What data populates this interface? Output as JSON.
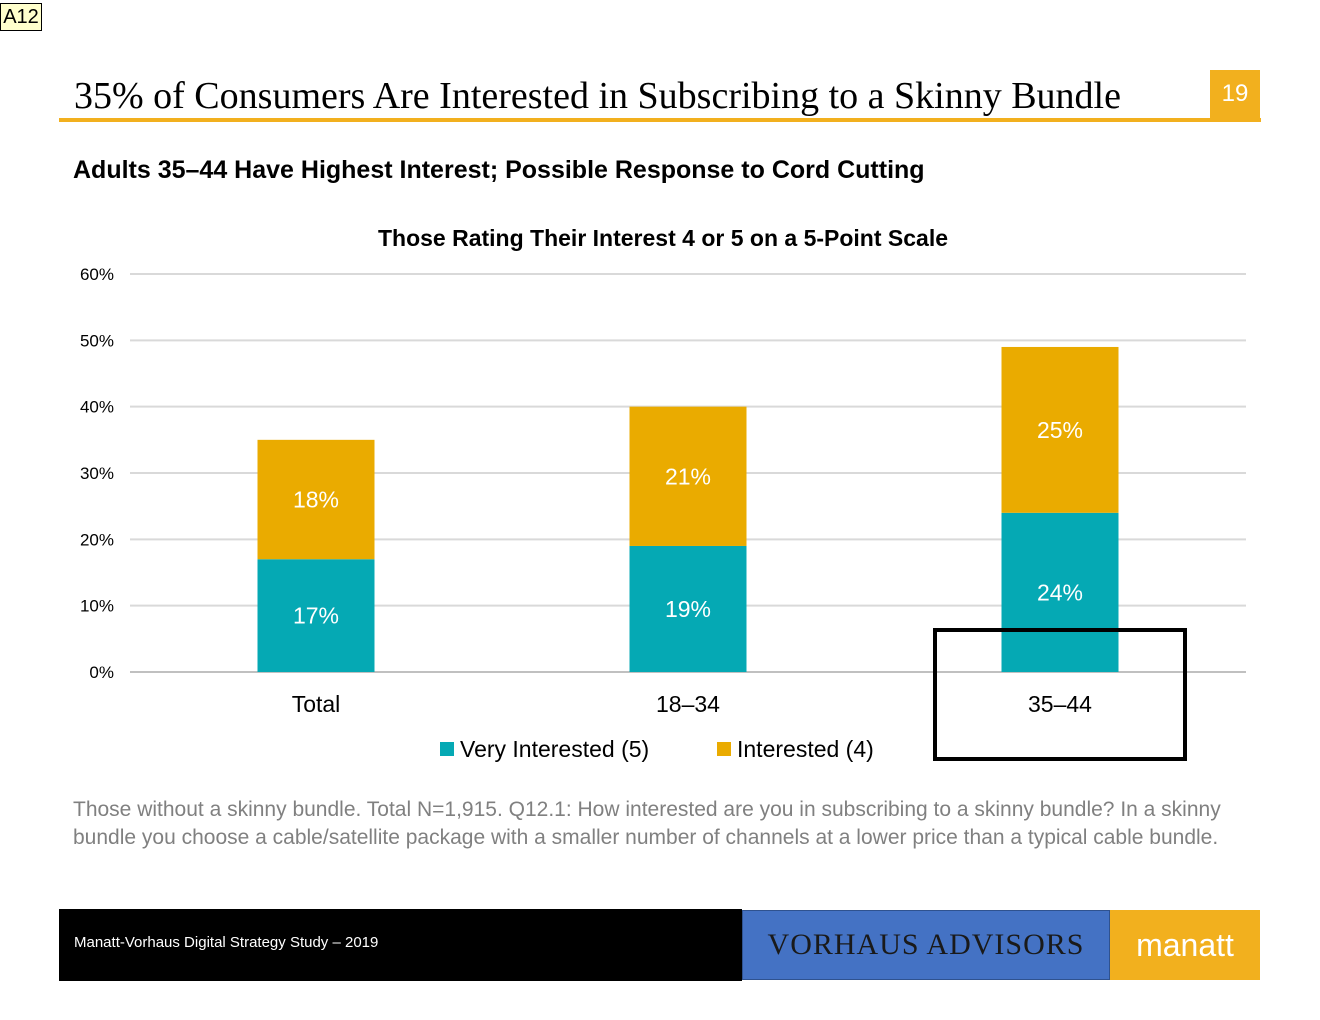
{
  "slide_tag": "A12",
  "page_number": "19",
  "title": "35% of Consumers Are Interested in Subscribing to a Skinny Bundle",
  "subtitle": "Adults 35–44 Have Highest Interest; Possible Response to Cord Cutting",
  "colors": {
    "accent": "#f2b01e",
    "teal": "#05a9b4",
    "gold": "#eaab00",
    "blue": "#4472c4"
  },
  "chart_data": {
    "type": "bar",
    "stacked": true,
    "title": "Those Rating Their Interest 4 or 5 on a 5-Point Scale",
    "categories": [
      "Total",
      "18–34",
      "35–44"
    ],
    "series": [
      {
        "name": "Very Interested (5)",
        "values": [
          17,
          19,
          24
        ],
        "labels": [
          "17%",
          "19%",
          "24%"
        ],
        "color": "#05a9b4"
      },
      {
        "name": "Interested (4)",
        "values": [
          18,
          21,
          25
        ],
        "labels": [
          "18%",
          "21%",
          "25%"
        ],
        "color": "#eaab00"
      }
    ],
    "ylim": [
      0,
      60
    ],
    "yticks": [
      "0%",
      "10%",
      "20%",
      "30%",
      "40%",
      "50%",
      "60%"
    ],
    "grid": true,
    "legend": "bottom",
    "highlighted_category": "35–44"
  },
  "note": "Those without a skinny bundle. Total N=1,915. Q12.1: How interested are you in subscribing to a skinny bundle? In a skinny bundle you choose a cable/satellite package with a smaller number of channels at a lower price than a typical cable bundle.",
  "footer": {
    "study": "Manatt-Vorhaus Digital Strategy Study – 2019",
    "logo_left": "VORHAUS ADVISORS",
    "logo_right": "manatt"
  }
}
